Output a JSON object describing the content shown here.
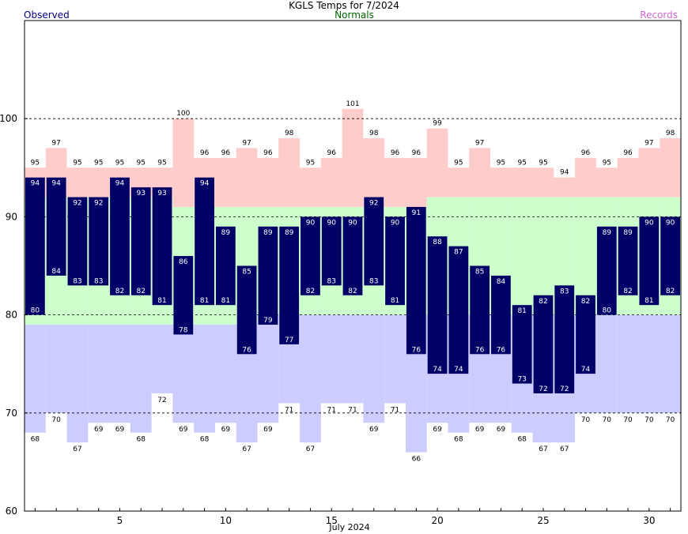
{
  "title": "KGLS Temps for 7/2024",
  "legend": {
    "observed": "Observed",
    "normals": "Normals",
    "records": "Records"
  },
  "colors": {
    "observed_bar": "#000066",
    "observed_text": "#000080",
    "normals_band": "#ccffcc",
    "normals_text": "#006600",
    "record_high_band": "#ffcccc",
    "record_low_band": "#ccccff",
    "records_text": "#cc66cc"
  },
  "chart_data": {
    "type": "bar",
    "title": "KGLS Temps for 7/2024",
    "xlabel": "July 2024",
    "ylabel": "",
    "ylim": [
      60,
      110
    ],
    "xlim": [
      0.5,
      31.5
    ],
    "yticks": [
      60,
      70,
      80,
      90,
      100
    ],
    "xticks": [
      5,
      10,
      15,
      20,
      25,
      30
    ],
    "gridlines_y": [
      70,
      80,
      90,
      100
    ],
    "days": [
      1,
      2,
      3,
      4,
      5,
      6,
      7,
      8,
      9,
      10,
      11,
      12,
      13,
      14,
      15,
      16,
      17,
      18,
      19,
      20,
      21,
      22,
      23,
      24,
      25,
      26,
      27,
      28,
      29,
      30,
      31
    ],
    "series": [
      {
        "name": "Observed",
        "high": [
          94,
          94,
          92,
          92,
          94,
          93,
          93,
          86,
          94,
          89,
          85,
          89,
          89,
          90,
          90,
          90,
          92,
          90,
          91,
          88,
          87,
          85,
          84,
          81,
          82,
          83,
          82,
          89,
          89,
          90,
          90
        ],
        "low": [
          80,
          84,
          83,
          83,
          82,
          82,
          81,
          78,
          81,
          81,
          76,
          79,
          77,
          82,
          83,
          82,
          83,
          81,
          76,
          74,
          74,
          76,
          76,
          73,
          72,
          72,
          74,
          80,
          82,
          81,
          82
        ]
      },
      {
        "name": "Normals",
        "high": [
          92,
          92,
          92,
          92,
          92,
          92,
          92,
          91,
          91,
          91,
          91,
          91,
          91,
          91,
          91,
          91,
          91,
          91,
          91,
          92,
          92,
          92,
          92,
          92,
          92,
          92,
          92,
          92,
          92,
          92,
          92
        ],
        "low": [
          79,
          79,
          79,
          79,
          79,
          79,
          79,
          79,
          79,
          79,
          79,
          80,
          80,
          80,
          80,
          80,
          80,
          80,
          80,
          80,
          80,
          80,
          80,
          80,
          80,
          80,
          80,
          80,
          80,
          80,
          80
        ]
      },
      {
        "name": "Records",
        "high": [
          95,
          97,
          95,
          95,
          95,
          95,
          95,
          100,
          96,
          96,
          97,
          96,
          98,
          95,
          96,
          101,
          98,
          96,
          96,
          99,
          95,
          97,
          95,
          95,
          95,
          94,
          96,
          95,
          96,
          97,
          98
        ],
        "low": [
          68,
          70,
          67,
          69,
          69,
          68,
          72,
          69,
          68,
          69,
          67,
          69,
          71,
          67,
          71,
          71,
          69,
          71,
          66,
          69,
          68,
          69,
          69,
          68,
          67,
          67,
          70,
          70,
          70,
          70,
          70
        ]
      }
    ]
  }
}
